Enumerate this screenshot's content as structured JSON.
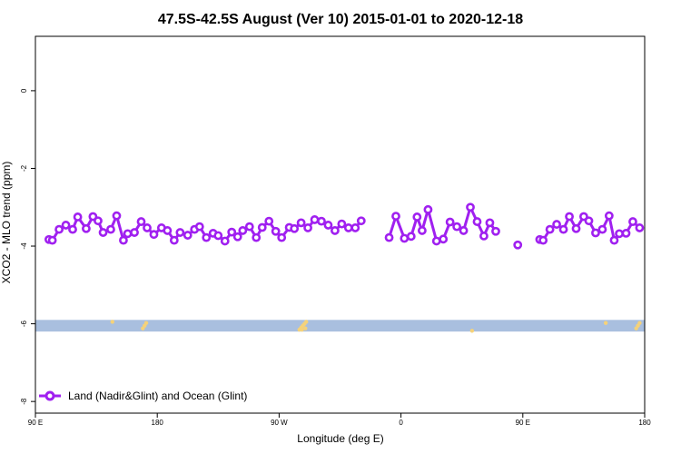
{
  "chart_data": {
    "type": "line",
    "title": "47.5S-42.5S August (Ver 10)   2015-01-01 to 2020-12-18",
    "xlabel": "Longitude (deg E)",
    "ylabel": "XCO2 - MLO trend (ppm)",
    "xlim": [
      90,
      450
    ],
    "ylim": [
      -8.3,
      1.4
    ],
    "x_ticks": [
      {
        "value": 90,
        "label": "90 E"
      },
      {
        "value": 162,
        "label": "180"
      },
      {
        "value": 234,
        "label": "90 W"
      },
      {
        "value": 306,
        "label": "0"
      },
      {
        "value": 378,
        "label": "90 E"
      },
      {
        "value": 450,
        "label": "180"
      }
    ],
    "y_ticks": [
      0,
      -2,
      -4,
      -6,
      -8
    ],
    "grid": false,
    "legend": {
      "position": "bottom-left",
      "entries": [
        "Land (Nadir&Glint) and Ocean (Glint)"
      ]
    },
    "colors": {
      "series": "#a020f0",
      "ocean_band": "#a9bfdf",
      "land": "#f5d27a"
    },
    "ocean_band": {
      "ymin": -6.2,
      "ymax": -5.9
    },
    "land_marks": [
      {
        "x": 135.5,
        "y": -5.95
      },
      {
        "x": 153.5,
        "y": -6.12
      },
      {
        "x": 154.5,
        "y": -6.05
      },
      {
        "x": 155.5,
        "y": -5.98
      },
      {
        "x": 246,
        "y": -6.15
      },
      {
        "x": 247,
        "y": -6.1
      },
      {
        "x": 248,
        "y": -6.05
      },
      {
        "x": 249,
        "y": -6.0
      },
      {
        "x": 250,
        "y": -5.95
      },
      {
        "x": 247.5,
        "y": -6.15
      },
      {
        "x": 249.5,
        "y": -6.12
      },
      {
        "x": 348,
        "y": -6.18
      },
      {
        "x": 427,
        "y": -5.98
      },
      {
        "x": 445,
        "y": -6.12
      },
      {
        "x": 446,
        "y": -6.05
      },
      {
        "x": 447,
        "y": -5.98
      }
    ],
    "series": [
      {
        "name": "Land (Nadir&Glint) and Ocean (Glint)",
        "segments": [
          [
            [
              98,
              -3.83
            ],
            [
              100,
              -3.85
            ],
            [
              104,
              -3.57
            ],
            [
              108,
              -3.46
            ],
            [
              112,
              -3.57
            ],
            [
              115,
              -3.25
            ],
            [
              120,
              -3.55
            ],
            [
              124,
              -3.24
            ],
            [
              127,
              -3.35
            ],
            [
              130,
              -3.65
            ],
            [
              134.5,
              -3.57
            ],
            [
              138,
              -3.22
            ],
            [
              142,
              -3.85
            ],
            [
              144.5,
              -3.68
            ],
            [
              148.5,
              -3.65
            ],
            [
              152.5,
              -3.37
            ],
            [
              156,
              -3.53
            ],
            [
              160,
              -3.7
            ],
            [
              164.5,
              -3.53
            ],
            [
              168,
              -3.6
            ],
            [
              172,
              -3.85
            ],
            [
              175.5,
              -3.65
            ],
            [
              180,
              -3.72
            ],
            [
              184,
              -3.57
            ],
            [
              187,
              -3.5
            ],
            [
              191,
              -3.78
            ],
            [
              195,
              -3.67
            ],
            [
              198,
              -3.73
            ],
            [
              202,
              -3.87
            ],
            [
              206,
              -3.64
            ],
            [
              209.5,
              -3.76
            ],
            [
              212.5,
              -3.6
            ],
            [
              216.5,
              -3.5
            ],
            [
              220.5,
              -3.78
            ],
            [
              224,
              -3.52
            ],
            [
              228,
              -3.36
            ],
            [
              232,
              -3.62
            ],
            [
              235.5,
              -3.78
            ],
            [
              240,
              -3.52
            ],
            [
              243,
              -3.55
            ],
            [
              247,
              -3.4
            ],
            [
              251,
              -3.53
            ],
            [
              255,
              -3.32
            ],
            [
              259,
              -3.36
            ],
            [
              263,
              -3.46
            ],
            [
              267,
              -3.6
            ],
            [
              271,
              -3.43
            ],
            [
              275,
              -3.53
            ],
            [
              279,
              -3.53
            ],
            [
              282.5,
              -3.35
            ]
          ],
          [
            [
              299,
              -3.78
            ],
            [
              303,
              -3.23
            ],
            [
              308,
              -3.8
            ],
            [
              312,
              -3.75
            ],
            [
              315.5,
              -3.25
            ],
            [
              318.5,
              -3.6
            ],
            [
              322,
              -3.06
            ],
            [
              327,
              -3.87
            ],
            [
              331,
              -3.82
            ],
            [
              335,
              -3.38
            ],
            [
              339,
              -3.5
            ],
            [
              343,
              -3.6
            ],
            [
              347,
              -3.0
            ],
            [
              351,
              -3.37
            ],
            [
              355,
              -3.74
            ],
            [
              358.5,
              -3.4
            ],
            [
              362,
              -3.62
            ]
          ],
          [
            [
              375,
              -3.97
            ]
          ],
          [
            [
              388,
              -3.83
            ],
            [
              390,
              -3.85
            ],
            [
              394,
              -3.57
            ],
            [
              398,
              -3.44
            ],
            [
              402,
              -3.57
            ],
            [
              405.5,
              -3.24
            ],
            [
              409.5,
              -3.55
            ],
            [
              414,
              -3.24
            ],
            [
              417,
              -3.35
            ],
            [
              421,
              -3.66
            ],
            [
              425,
              -3.57
            ],
            [
              429,
              -3.22
            ],
            [
              432,
              -3.85
            ],
            [
              435,
              -3.68
            ],
            [
              439,
              -3.67
            ],
            [
              443,
              -3.37
            ],
            [
              447,
              -3.53
            ]
          ]
        ]
      }
    ]
  }
}
